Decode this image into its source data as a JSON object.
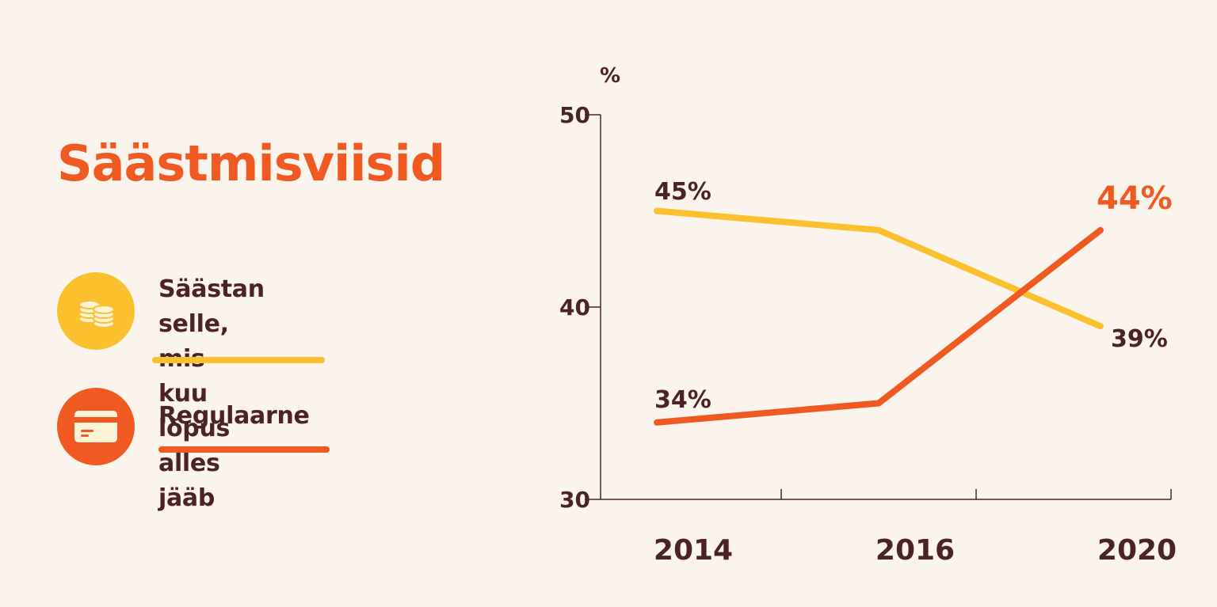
{
  "colors": {
    "background": "#fbf4ec",
    "title": "#f05a22",
    "text": "#4a2228",
    "yellow": "#fbc02d",
    "orange": "#f05a22",
    "axis": "#4a2228"
  },
  "title": "Säästmisviisid",
  "legend": [
    {
      "label_line1": "Säästan selle, mis",
      "label_line2": "kuu lõpus alles jääb",
      "icon": "coins-icon",
      "color": "#fbc02d"
    },
    {
      "label_line1": "Regulaarne",
      "label_line2": "",
      "icon": "credit-card-icon",
      "color": "#f05a22"
    }
  ],
  "chart_data": {
    "type": "line",
    "title": "",
    "ylabel": "%",
    "xlabel": "",
    "ylim": [
      30,
      50
    ],
    "yticks": [
      30,
      40,
      50
    ],
    "categories": [
      "2014",
      "2016",
      "2020"
    ],
    "grid": false,
    "series": [
      {
        "name": "Säästan selle, mis kuu lõpus alles jääb",
        "color": "#fbc02d",
        "values": [
          45,
          44,
          39
        ],
        "labels": [
          "45%",
          "",
          "39%"
        ]
      },
      {
        "name": "Regulaarne",
        "color": "#f05a22",
        "values": [
          34,
          35,
          44
        ],
        "labels": [
          "34%",
          "",
          "44%"
        ]
      }
    ]
  }
}
